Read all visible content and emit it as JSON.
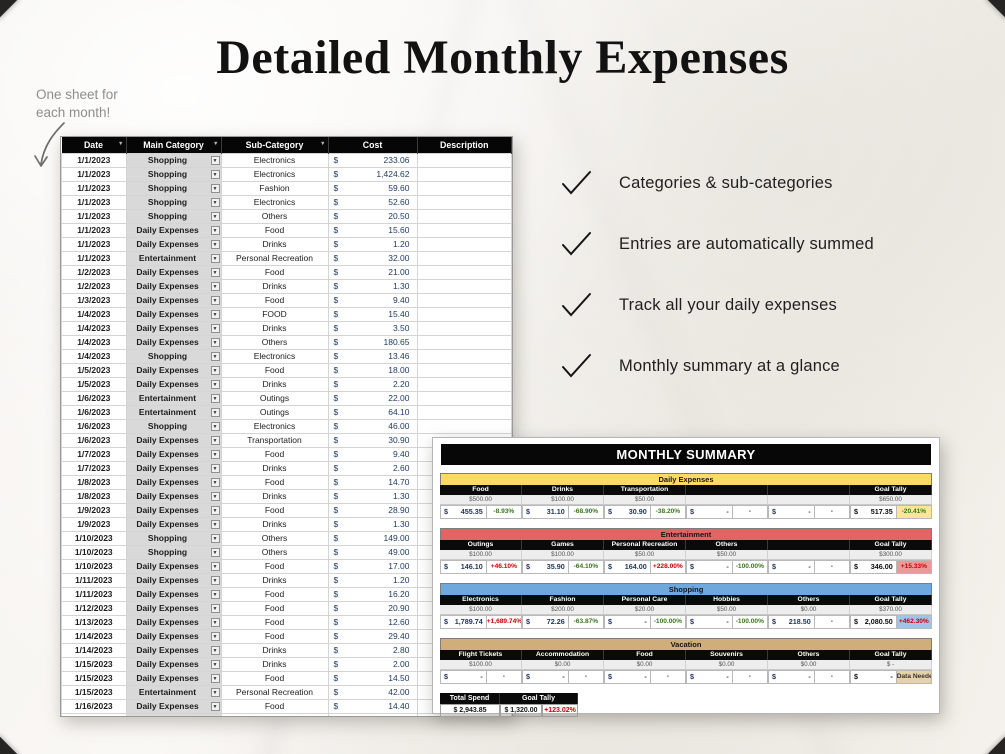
{
  "page": {
    "title": "Detailed Monthly Expenses",
    "annotation_line1": "One sheet for",
    "annotation_line2": "each month!"
  },
  "features": [
    "Categories & sub-categories",
    "Entries are automatically summed",
    "Track all your daily expenses",
    "Monthly summary at a glance"
  ],
  "expense_table": {
    "currency_symbol": "$",
    "headers": [
      "Date",
      "Main Category",
      "Sub-Category",
      "Cost",
      "Description"
    ],
    "rows": [
      [
        "1/1/2023",
        "Shopping",
        "Electronics",
        "233.06"
      ],
      [
        "1/1/2023",
        "Shopping",
        "Electronics",
        "1,424.62"
      ],
      [
        "1/1/2023",
        "Shopping",
        "Fashion",
        "59.60"
      ],
      [
        "1/1/2023",
        "Shopping",
        "Electronics",
        "52.60"
      ],
      [
        "1/1/2023",
        "Shopping",
        "Others",
        "20.50"
      ],
      [
        "1/1/2023",
        "Daily Expenses",
        "Food",
        "15.60"
      ],
      [
        "1/1/2023",
        "Daily Expenses",
        "Drinks",
        "1.20"
      ],
      [
        "1/1/2023",
        "Entertainment",
        "Personal Recreation",
        "32.00"
      ],
      [
        "1/2/2023",
        "Daily Expenses",
        "Food",
        "21.00"
      ],
      [
        "1/2/2023",
        "Daily Expenses",
        "Drinks",
        "1.30"
      ],
      [
        "1/3/2023",
        "Daily Expenses",
        "Food",
        "9.40"
      ],
      [
        "1/4/2023",
        "Daily Expenses",
        "FOOD",
        "15.40"
      ],
      [
        "1/4/2023",
        "Daily Expenses",
        "Drinks",
        "3.50"
      ],
      [
        "1/4/2023",
        "Daily Expenses",
        "Others",
        "180.65"
      ],
      [
        "1/4/2023",
        "Shopping",
        "Electronics",
        "13.46"
      ],
      [
        "1/5/2023",
        "Daily Expenses",
        "Food",
        "18.00"
      ],
      [
        "1/5/2023",
        "Daily Expenses",
        "Drinks",
        "2.20"
      ],
      [
        "1/6/2023",
        "Entertainment",
        "Outings",
        "22.00"
      ],
      [
        "1/6/2023",
        "Entertainment",
        "Outings",
        "64.10"
      ],
      [
        "1/6/2023",
        "Shopping",
        "Electronics",
        "46.00"
      ],
      [
        "1/6/2023",
        "Daily Expenses",
        "Transportation",
        "30.90"
      ],
      [
        "1/7/2023",
        "Daily Expenses",
        "Food",
        "9.40"
      ],
      [
        "1/7/2023",
        "Daily Expenses",
        "Drinks",
        "2.60"
      ],
      [
        "1/8/2023",
        "Daily Expenses",
        "Food",
        "14.70"
      ],
      [
        "1/8/2023",
        "Daily Expenses",
        "Drinks",
        "1.30"
      ],
      [
        "1/9/2023",
        "Daily Expenses",
        "Food",
        "28.90"
      ],
      [
        "1/9/2023",
        "Daily Expenses",
        "Drinks",
        "1.30"
      ],
      [
        "1/10/2023",
        "Shopping",
        "Others",
        "149.00"
      ],
      [
        "1/10/2023",
        "Shopping",
        "Others",
        "49.00"
      ],
      [
        "1/10/2023",
        "Daily Expenses",
        "Food",
        "17.00"
      ],
      [
        "1/11/2023",
        "Daily Expenses",
        "Drinks",
        "1.20"
      ],
      [
        "1/11/2023",
        "Daily Expenses",
        "Food",
        "16.20"
      ],
      [
        "1/12/2023",
        "Daily Expenses",
        "Food",
        "20.90"
      ],
      [
        "1/13/2023",
        "Daily Expenses",
        "Food",
        "12.60"
      ],
      [
        "1/14/2023",
        "Daily Expenses",
        "Food",
        "29.40"
      ],
      [
        "1/14/2023",
        "Daily Expenses",
        "Drinks",
        "2.80"
      ],
      [
        "1/15/2023",
        "Daily Expenses",
        "Drinks",
        "2.00"
      ],
      [
        "1/15/2023",
        "Daily Expenses",
        "Food",
        "14.50"
      ],
      [
        "1/15/2023",
        "Entertainment",
        "Personal Recreation",
        "42.00"
      ],
      [
        "1/16/2023",
        "Daily Expenses",
        "Food",
        "14.40"
      ],
      [
        "1/16/2023",
        "Shopping",
        "Fashion",
        "12.66"
      ],
      [
        "1/17/2023",
        "Daily Expenses",
        "Food",
        "16.40"
      ],
      [
        "1/17/2023",
        "Daily Expenses",
        "Healthcare",
        "86.40"
      ],
      [
        "1/18/2023",
        "Daily Expenses",
        "Food",
        "20.90"
      ]
    ]
  },
  "summary": {
    "title": "MONTHLY SUMMARY",
    "colors": {
      "over_budget": "#cc0000",
      "under_budget": "#38761d"
    },
    "sections": [
      {
        "name": "Daily Expenses",
        "color": "#ffd966",
        "tint": "#ffe599",
        "groups": [
          {
            "label": "Food",
            "budget": "$500.00",
            "amount": "455.35",
            "pct": "-8.93%"
          },
          {
            "label": "Drinks",
            "budget": "$100.00",
            "amount": "31.10",
            "pct": "-68.90%"
          },
          {
            "label": "Transportation",
            "budget": "$50.00",
            "amount": "30.90",
            "pct": "-38.20%"
          },
          {
            "label": "",
            "budget": "",
            "amount": "-",
            "pct": "-"
          },
          {
            "label": "",
            "budget": "",
            "amount": "-",
            "pct": "-"
          },
          {
            "label": "Goal Tally",
            "budget": "$650.00",
            "amount": "517.35",
            "pct": "-20.41%",
            "goal": true
          }
        ]
      },
      {
        "name": "Entertainment",
        "color": "#e06666",
        "tint": "#ea9999",
        "groups": [
          {
            "label": "Outings",
            "budget": "$100.00",
            "amount": "146.10",
            "pct": "+46.10%"
          },
          {
            "label": "Games",
            "budget": "$100.00",
            "amount": "35.90",
            "pct": "-64.10%"
          },
          {
            "label": "Personal Recreation",
            "budget": "$50.00",
            "amount": "164.00",
            "pct": "+228.00%"
          },
          {
            "label": "Others",
            "budget": "$50.00",
            "amount": "-",
            "pct": "-100.00%"
          },
          {
            "label": "",
            "budget": "",
            "amount": "-",
            "pct": "-"
          },
          {
            "label": "Goal Tally",
            "budget": "$300.00",
            "amount": "346.00",
            "pct": "+15.33%",
            "goal": true
          }
        ]
      },
      {
        "name": "Shopping",
        "color": "#6fa8dc",
        "tint": "#9fc5e8",
        "groups": [
          {
            "label": "Electronics",
            "budget": "$100.00",
            "amount": "1,789.74",
            "pct": "+1,689.74%"
          },
          {
            "label": "Fashion",
            "budget": "$200.00",
            "amount": "72.26",
            "pct": "-63.87%"
          },
          {
            "label": "Personal Care",
            "budget": "$20.00",
            "amount": "-",
            "pct": "-100.00%"
          },
          {
            "label": "Hobbies",
            "budget": "$50.00",
            "amount": "-",
            "pct": "-100.00%"
          },
          {
            "label": "Others",
            "budget": "$0.00",
            "amount": "218.50",
            "pct": "-"
          },
          {
            "label": "Goal Tally",
            "budget": "$370.00",
            "amount": "2,080.50",
            "pct": "+462.30%",
            "goal": true
          }
        ]
      },
      {
        "name": "Vacation",
        "color": "#cfae7b",
        "tint": "#e6d2a8",
        "groups": [
          {
            "label": "Flight Tickets",
            "budget": "$100.00",
            "amount": "-",
            "pct": "-"
          },
          {
            "label": "Accommodation",
            "budget": "$0.00",
            "amount": "-",
            "pct": "-"
          },
          {
            "label": "Food",
            "budget": "$0.00",
            "amount": "-",
            "pct": "-"
          },
          {
            "label": "Souvenirs",
            "budget": "$0.00",
            "amount": "-",
            "pct": "-"
          },
          {
            "label": "Others",
            "budget": "$0.00",
            "amount": "-",
            "pct": "-"
          },
          {
            "label": "Goal Tally",
            "budget": "$ -",
            "amount": "-",
            "pct": "Data Needed",
            "goal": true
          }
        ]
      }
    ],
    "footer": {
      "total_spend_label": "Total Spend",
      "total_spend_value": "$  2,943.85",
      "goal_tally_label": "Goal Tally",
      "goal_tally_value": "$  1,320.00",
      "goal_tally_pct": "+123.02%"
    }
  }
}
